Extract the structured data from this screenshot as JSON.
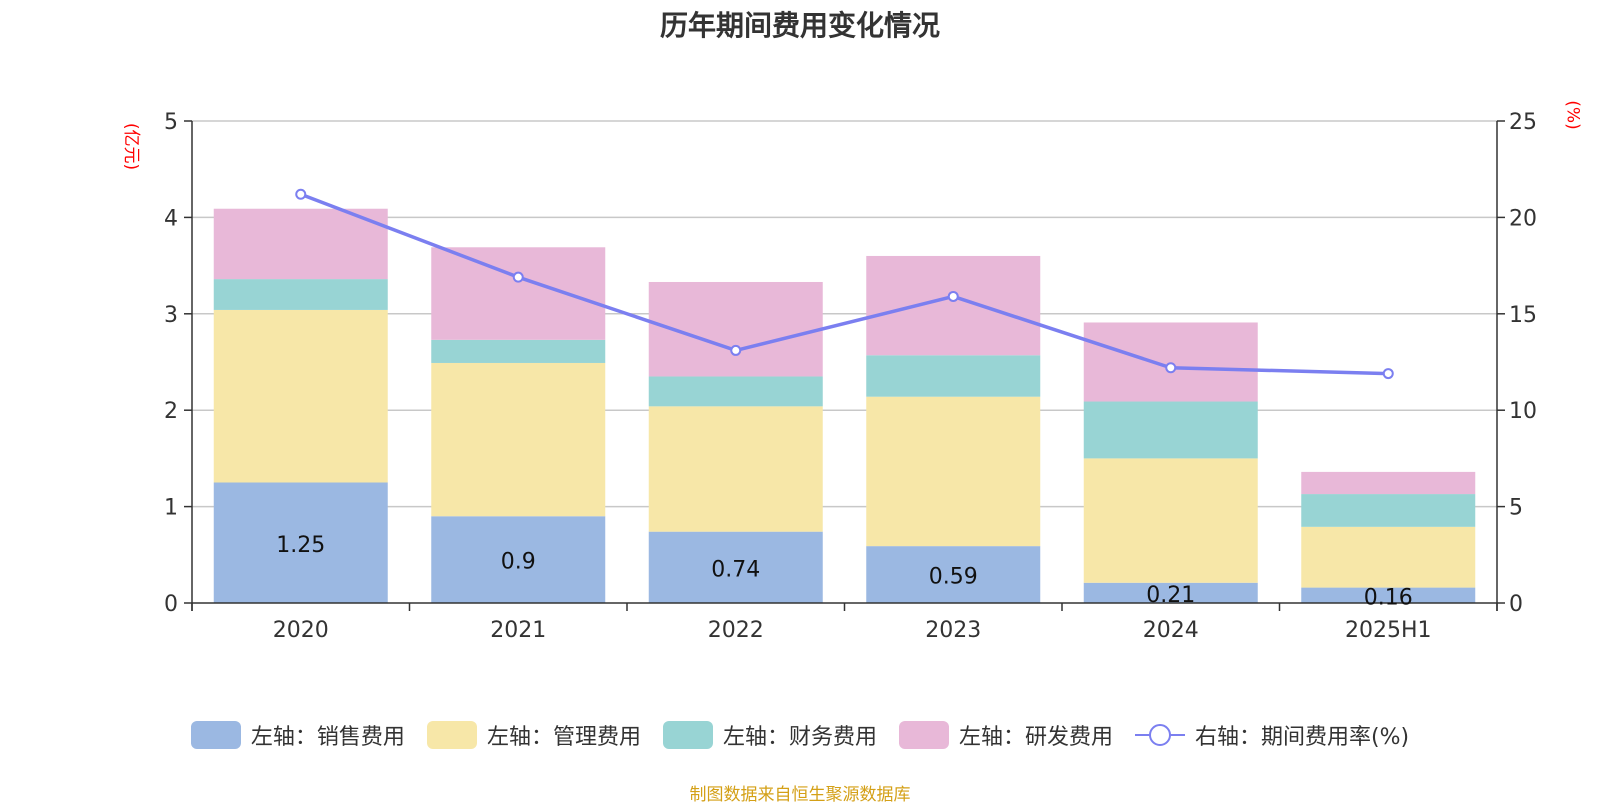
{
  "chart_data": {
    "type": "bar",
    "title": "历年期间费用变化情况",
    "categories": [
      "2020",
      "2021",
      "2022",
      "2023",
      "2024",
      "2025H1"
    ],
    "left_axis": {
      "unit": "(亿元)",
      "ylim": [
        0,
        5
      ],
      "ticks": [
        "0",
        "1",
        "2",
        "3",
        "4",
        "5"
      ]
    },
    "right_axis": {
      "unit": "(%)",
      "ylim": [
        0,
        25
      ],
      "ticks": [
        "0",
        "5",
        "10",
        "15",
        "20",
        "25"
      ]
    },
    "series": [
      {
        "name": "左轴：销售费用",
        "type": "bar",
        "axis": "left",
        "color": "#9bb8e2",
        "values": [
          1.25,
          0.9,
          0.74,
          0.59,
          0.21,
          0.16
        ],
        "data_labels": [
          "1.25",
          "0.9",
          "0.74",
          "0.59",
          "0.21",
          "0.16"
        ]
      },
      {
        "name": "左轴：管理费用",
        "type": "bar",
        "axis": "left",
        "color": "#f7e7a8",
        "values": [
          1.79,
          1.59,
          1.3,
          1.55,
          1.29,
          0.63
        ]
      },
      {
        "name": "左轴：财务费用",
        "type": "bar",
        "axis": "left",
        "color": "#98d4d4",
        "values": [
          0.32,
          0.24,
          0.31,
          0.43,
          0.59,
          0.34
        ]
      },
      {
        "name": "左轴：研发费用",
        "type": "bar",
        "axis": "left",
        "color": "#e8b8d8",
        "values": [
          0.73,
          0.96,
          0.98,
          1.03,
          0.82,
          0.23
        ]
      },
      {
        "name": "右轴：期间费用率(%)",
        "type": "line",
        "axis": "right",
        "color": "#7b7ff0",
        "values": [
          21.2,
          16.9,
          13.1,
          15.9,
          12.2,
          11.9
        ]
      }
    ],
    "grid": true,
    "legend_position": "bottom"
  },
  "source": "制图数据来自恒生聚源数据库"
}
